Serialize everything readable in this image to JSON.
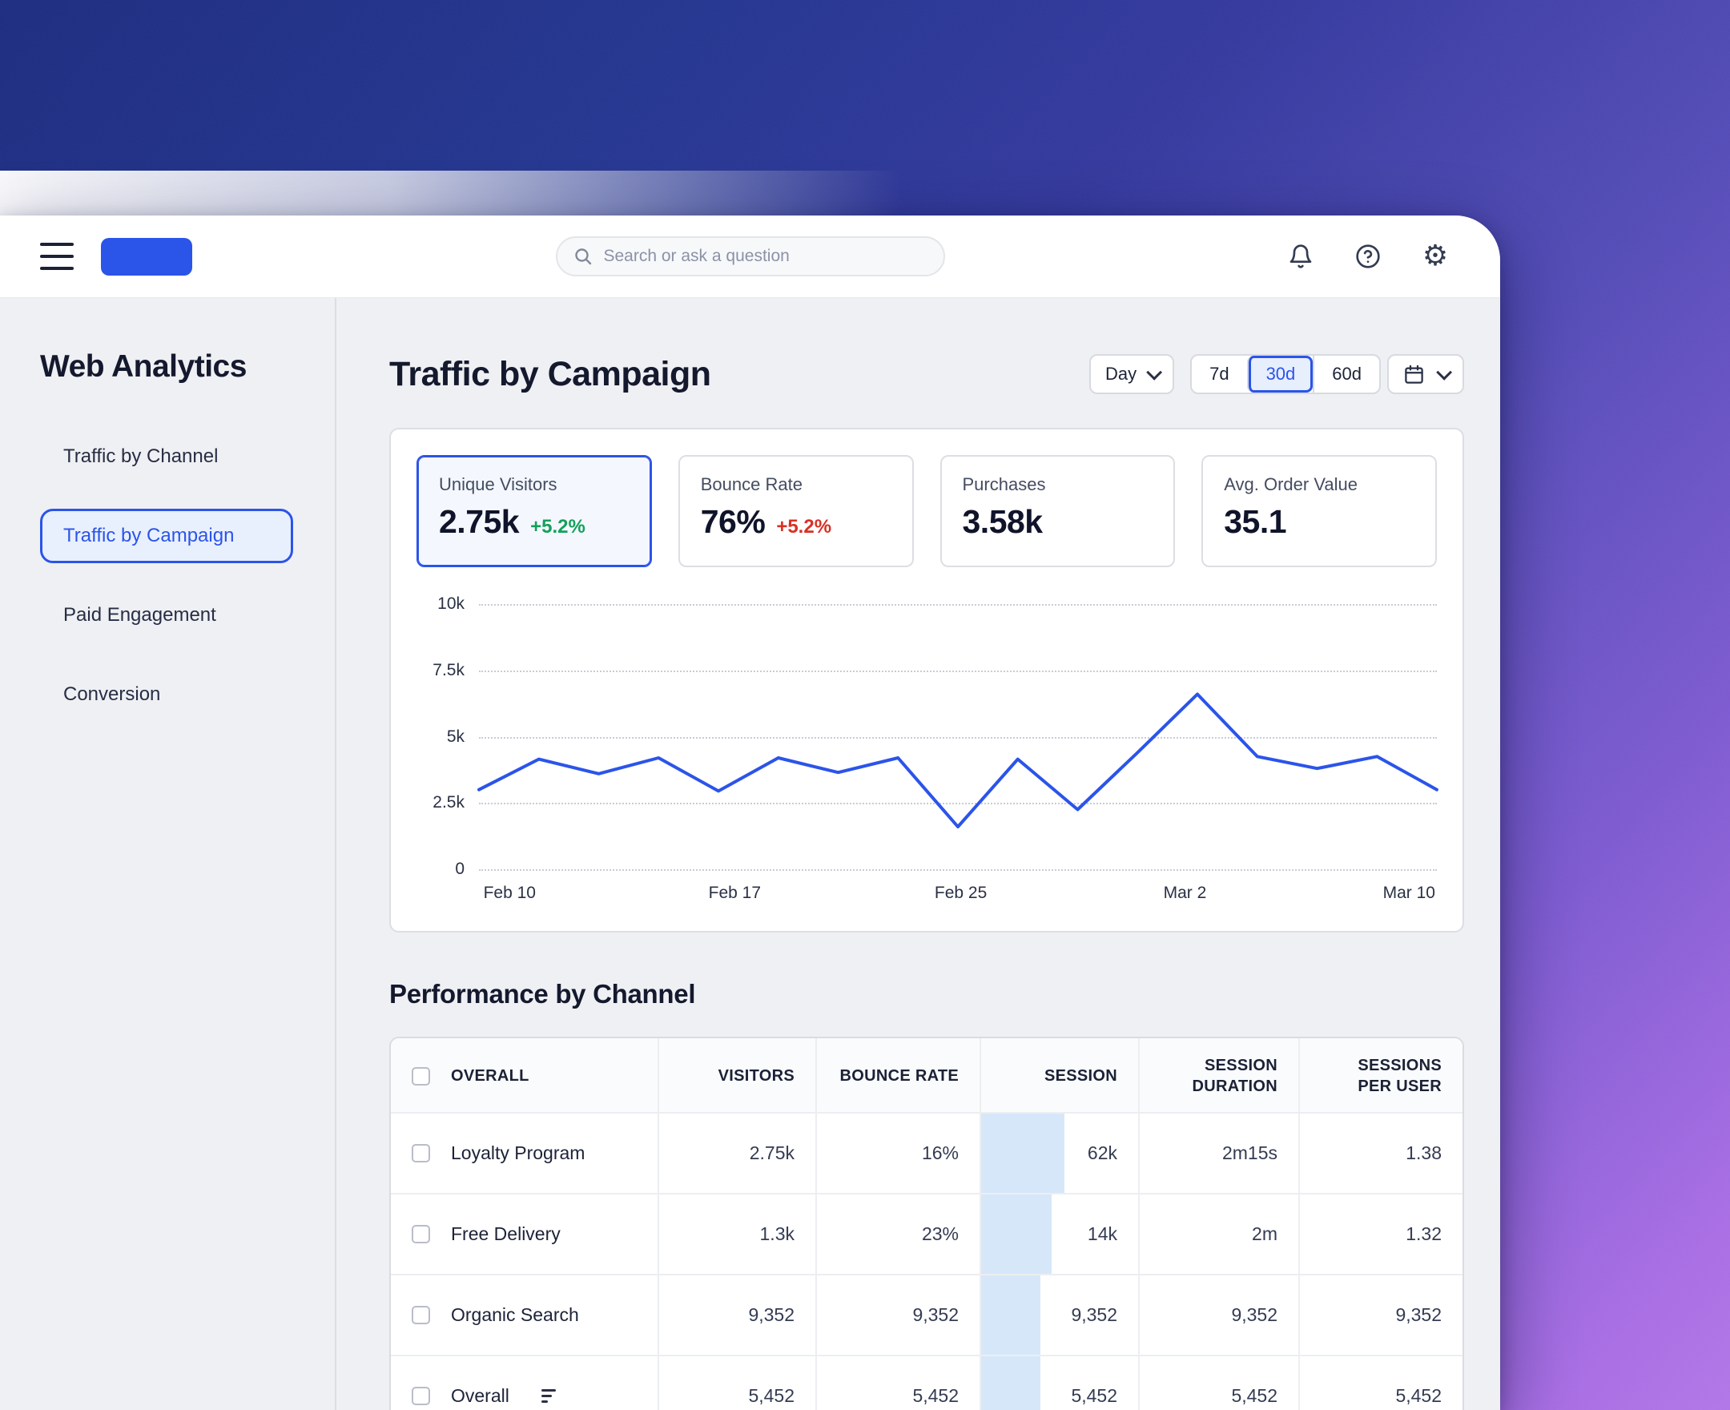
{
  "colors": {
    "accent": "#2b54e9",
    "positive": "#14a05a",
    "negative": "#d93025",
    "line": "#2b54e9",
    "session_bar": "#d7e7fa"
  },
  "header": {
    "search_placeholder": "Search or ask a question"
  },
  "sidebar": {
    "title": "Web Analytics",
    "items": [
      {
        "label": "Traffic by Channel",
        "active": false
      },
      {
        "label": "Traffic by Campaign",
        "active": true
      },
      {
        "label": "Paid Engagement",
        "active": false
      },
      {
        "label": "Conversion",
        "active": false
      }
    ]
  },
  "main": {
    "title": "Traffic by Campaign",
    "controls": {
      "granularity": "Day",
      "ranges": [
        "7d",
        "30d",
        "60d"
      ],
      "active_range": "30d"
    },
    "kpis": [
      {
        "label": "Unique Visitors",
        "value": "2.75k",
        "delta": "+5.2%",
        "trend": "up",
        "selected": true
      },
      {
        "label": "Bounce Rate",
        "value": "76%",
        "delta": "+5.2%",
        "trend": "down",
        "selected": false
      },
      {
        "label": "Purchases",
        "value": "3.58k",
        "delta": "",
        "selected": false
      },
      {
        "label": "Avg. Order Value",
        "value": "35.1",
        "delta": "",
        "selected": false
      }
    ]
  },
  "chart_data": {
    "type": "line",
    "title": "",
    "xlabel": "",
    "ylabel": "",
    "ylim": [
      0,
      10000
    ],
    "grid": "dotted-horizontal",
    "legend": "none",
    "line_color": "#2b54e9",
    "ytick_labels": [
      "10k",
      "7.5k",
      "5k",
      "2.5k",
      "0"
    ],
    "x_labels": [
      "Feb 10",
      "Feb 17",
      "Feb 25",
      "Mar 2",
      "Mar 10"
    ],
    "x_label_positions_pct": [
      3.2,
      26.7,
      50.3,
      73.7,
      97.1
    ],
    "series": [
      {
        "name": "Unique Visitors",
        "values": [
          3000,
          4150,
          3600,
          4200,
          2950,
          4200,
          3650,
          4200,
          1600,
          4150,
          2250,
          4400,
          6600,
          4250,
          3800,
          4250,
          3000
        ]
      }
    ]
  },
  "performance": {
    "title": "Performance by Channel",
    "columns": [
      "OVERALL",
      "VISITORS",
      "BOUNCE RATE",
      "SESSION",
      "SESSION DURATION",
      "SESSIONS PER USER"
    ],
    "rows": [
      {
        "name": "Loyalty Program",
        "visitors": "2.75k",
        "bounce_rate": "16%",
        "session": "62k",
        "session_duration": "2m15s",
        "sessions_per_user": "1.38",
        "session_bar_pct": 53
      },
      {
        "name": "Free Delivery",
        "visitors": "1.3k",
        "bounce_rate": "23%",
        "session": "14k",
        "session_duration": "2m",
        "sessions_per_user": "1.32",
        "session_bar_pct": 45
      },
      {
        "name": "Organic Search",
        "visitors": "9,352",
        "bounce_rate": "9,352",
        "session": "9,352",
        "session_duration": "9,352",
        "sessions_per_user": "9,352",
        "session_bar_pct": 38
      },
      {
        "name": "Overall",
        "visitors": "5,452",
        "bounce_rate": "5,452",
        "session": "5,452",
        "session_duration": "5,452",
        "sessions_per_user": "5,452",
        "session_bar_pct": 38
      }
    ]
  }
}
